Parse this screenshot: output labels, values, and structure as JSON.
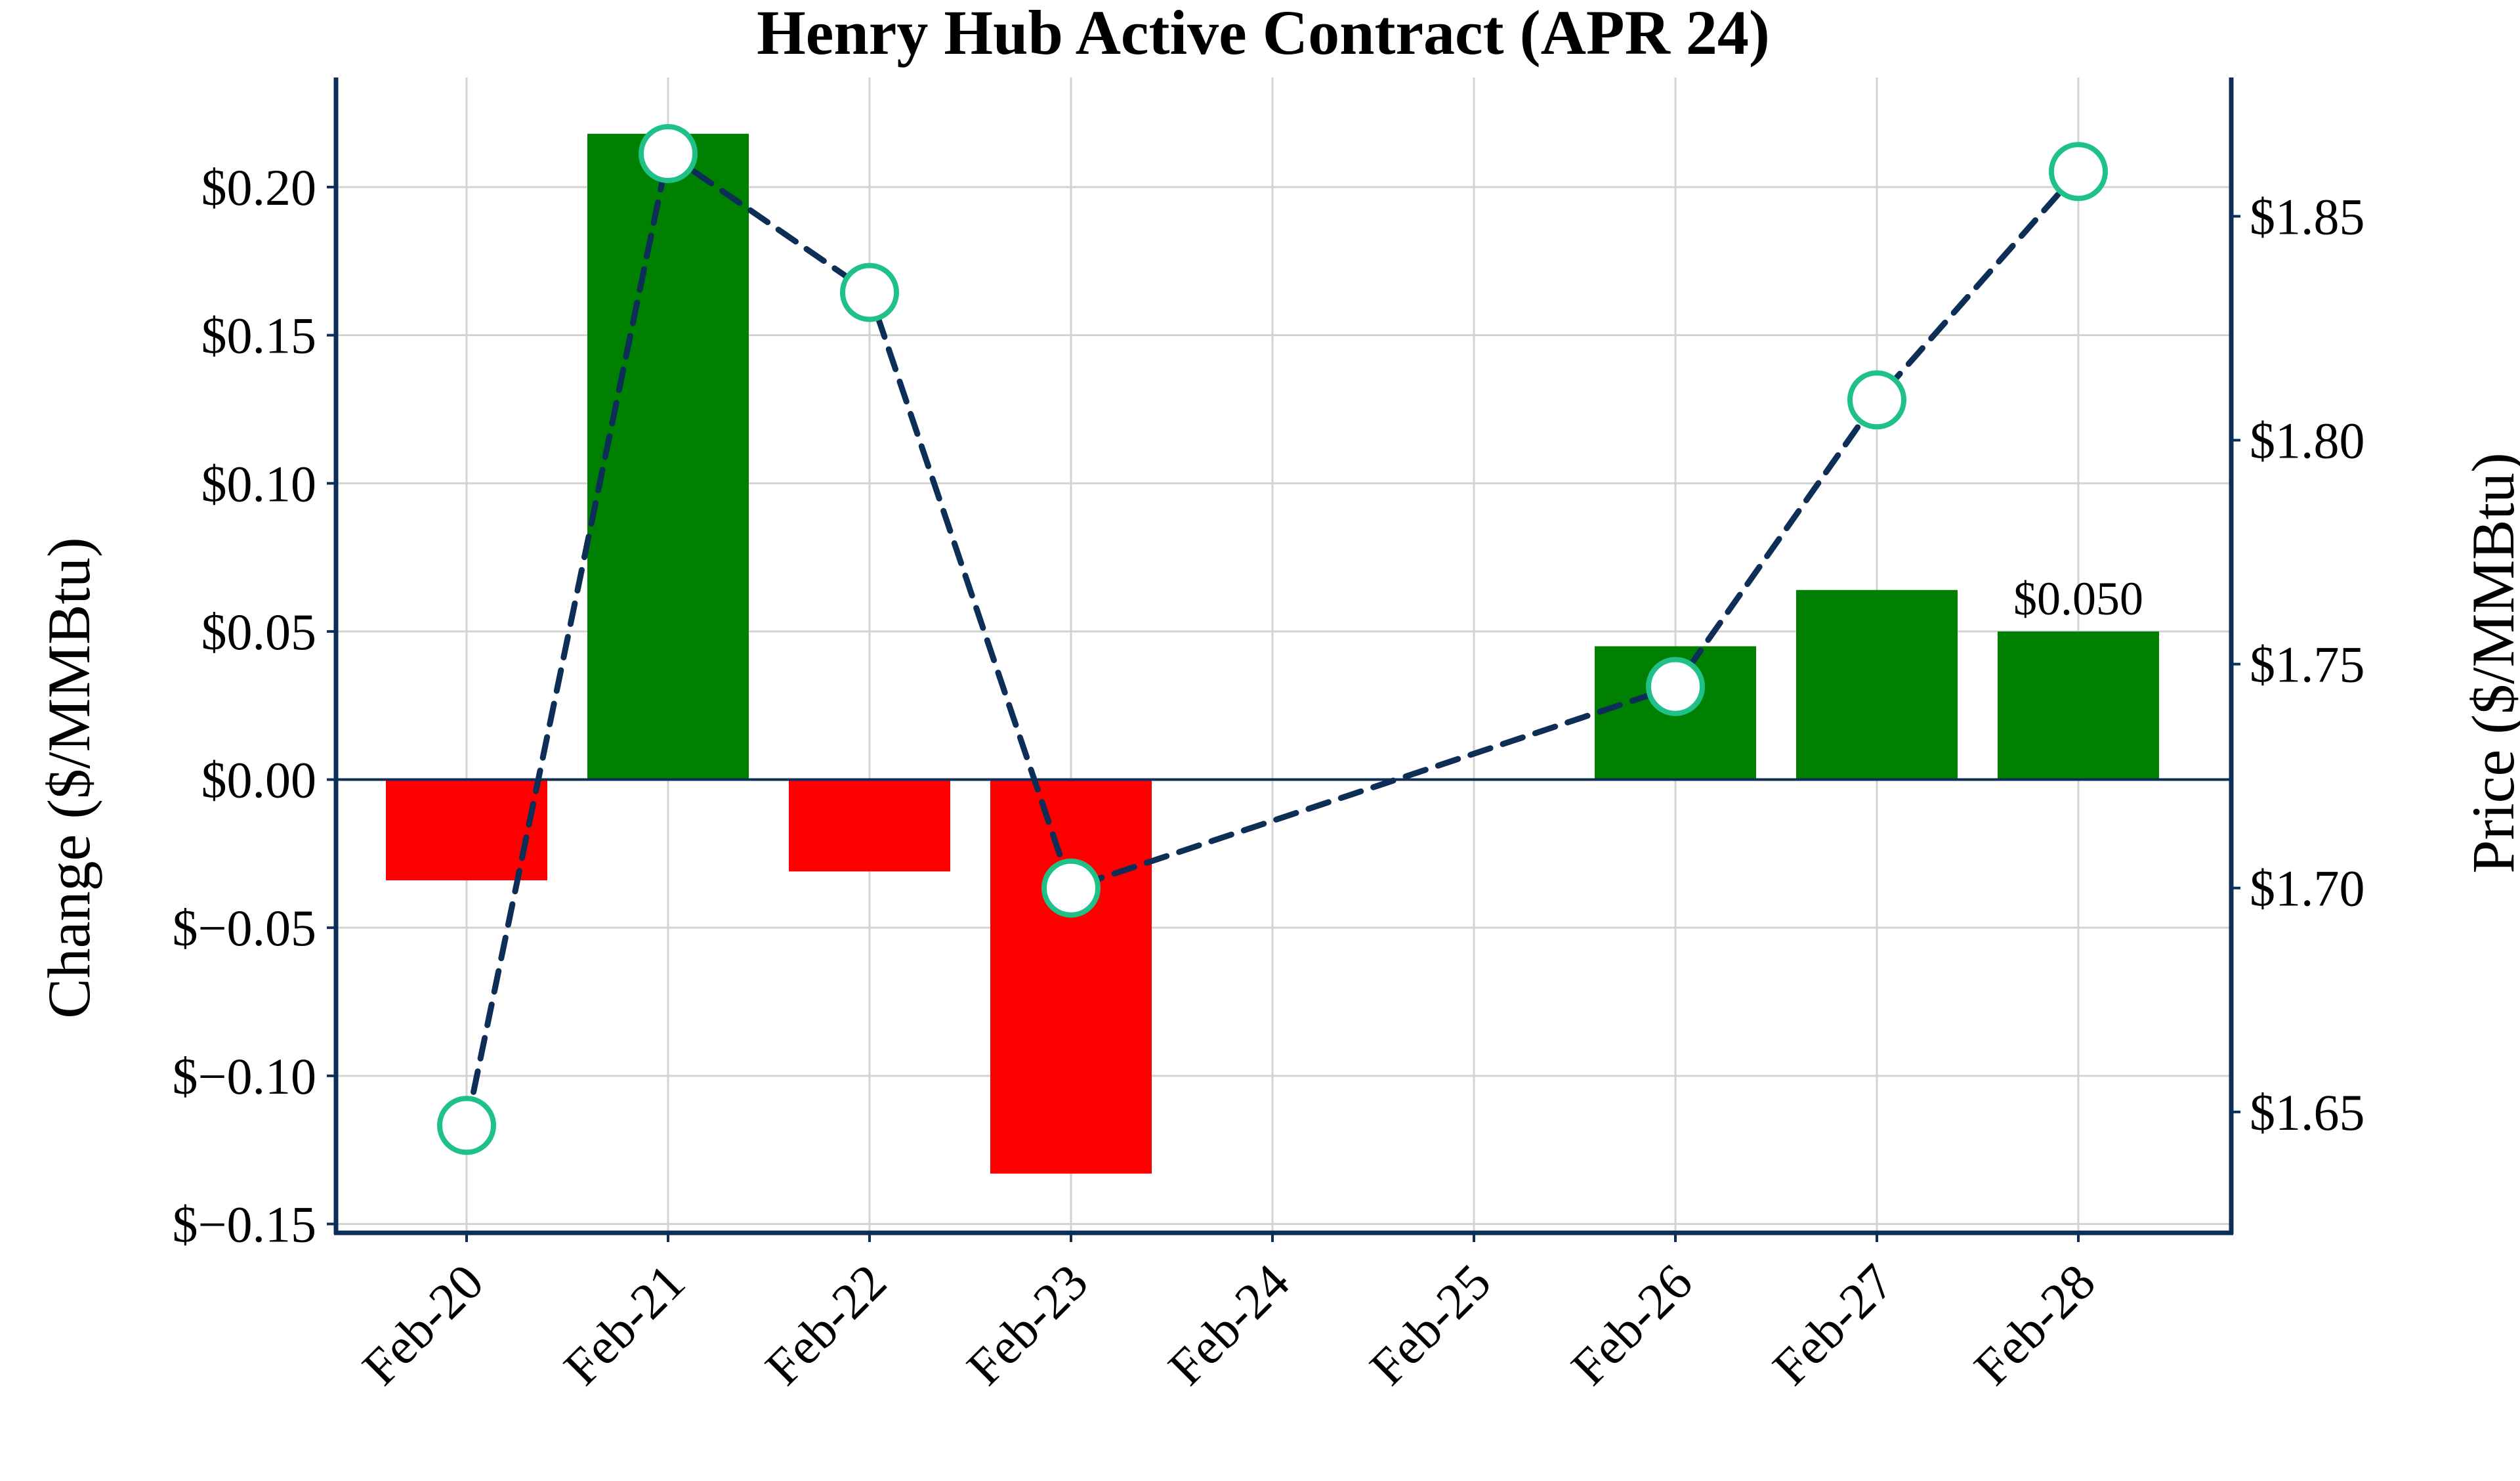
{
  "chart_data": {
    "type": "bar",
    "title": "Henry Hub Active Contract (APR 24)",
    "xlabel": "",
    "ylabel": "Change ($/MMBtu)",
    "y2label": "Price ($/MMBtu)",
    "categories": [
      "Feb-20",
      "Feb-21",
      "Feb-22",
      "Feb-23",
      "Feb-24",
      "Feb-25",
      "Feb-26",
      "Feb-27",
      "Feb-28"
    ],
    "series": [
      {
        "type": "bar",
        "axis": "left",
        "values": [
          -0.034,
          0.218,
          -0.031,
          -0.133,
          null,
          null,
          0.045,
          0.064,
          0.05
        ]
      },
      {
        "type": "line",
        "axis": "right",
        "style": "dashed",
        "values": [
          1.647,
          1.864,
          1.833,
          1.7,
          null,
          null,
          1.745,
          1.809,
          1.86
        ]
      }
    ],
    "ylim": [
      -0.153,
      0.237
    ],
    "y2lim": [
      1.623,
      1.881
    ],
    "yticks": [
      "$−0.15",
      "$−0.10",
      "$−0.05",
      "$0.00",
      "$0.05",
      "$0.10",
      "$0.15",
      "$0.20"
    ],
    "y2ticks": [
      "$1.65",
      "$1.70",
      "$1.75",
      "$1.80",
      "$1.85"
    ],
    "annotations": [
      {
        "category": "Feb-28",
        "text": "$0.050"
      }
    ],
    "grid": true,
    "colors": {
      "positive_bar": "#008000",
      "negative_bar": "#ff0000",
      "line": "#0d2e57",
      "marker_edge": "#20c189",
      "marker_face": "#ffffff",
      "axis": "#0d2e57",
      "grid": "#d3d3d3"
    }
  }
}
